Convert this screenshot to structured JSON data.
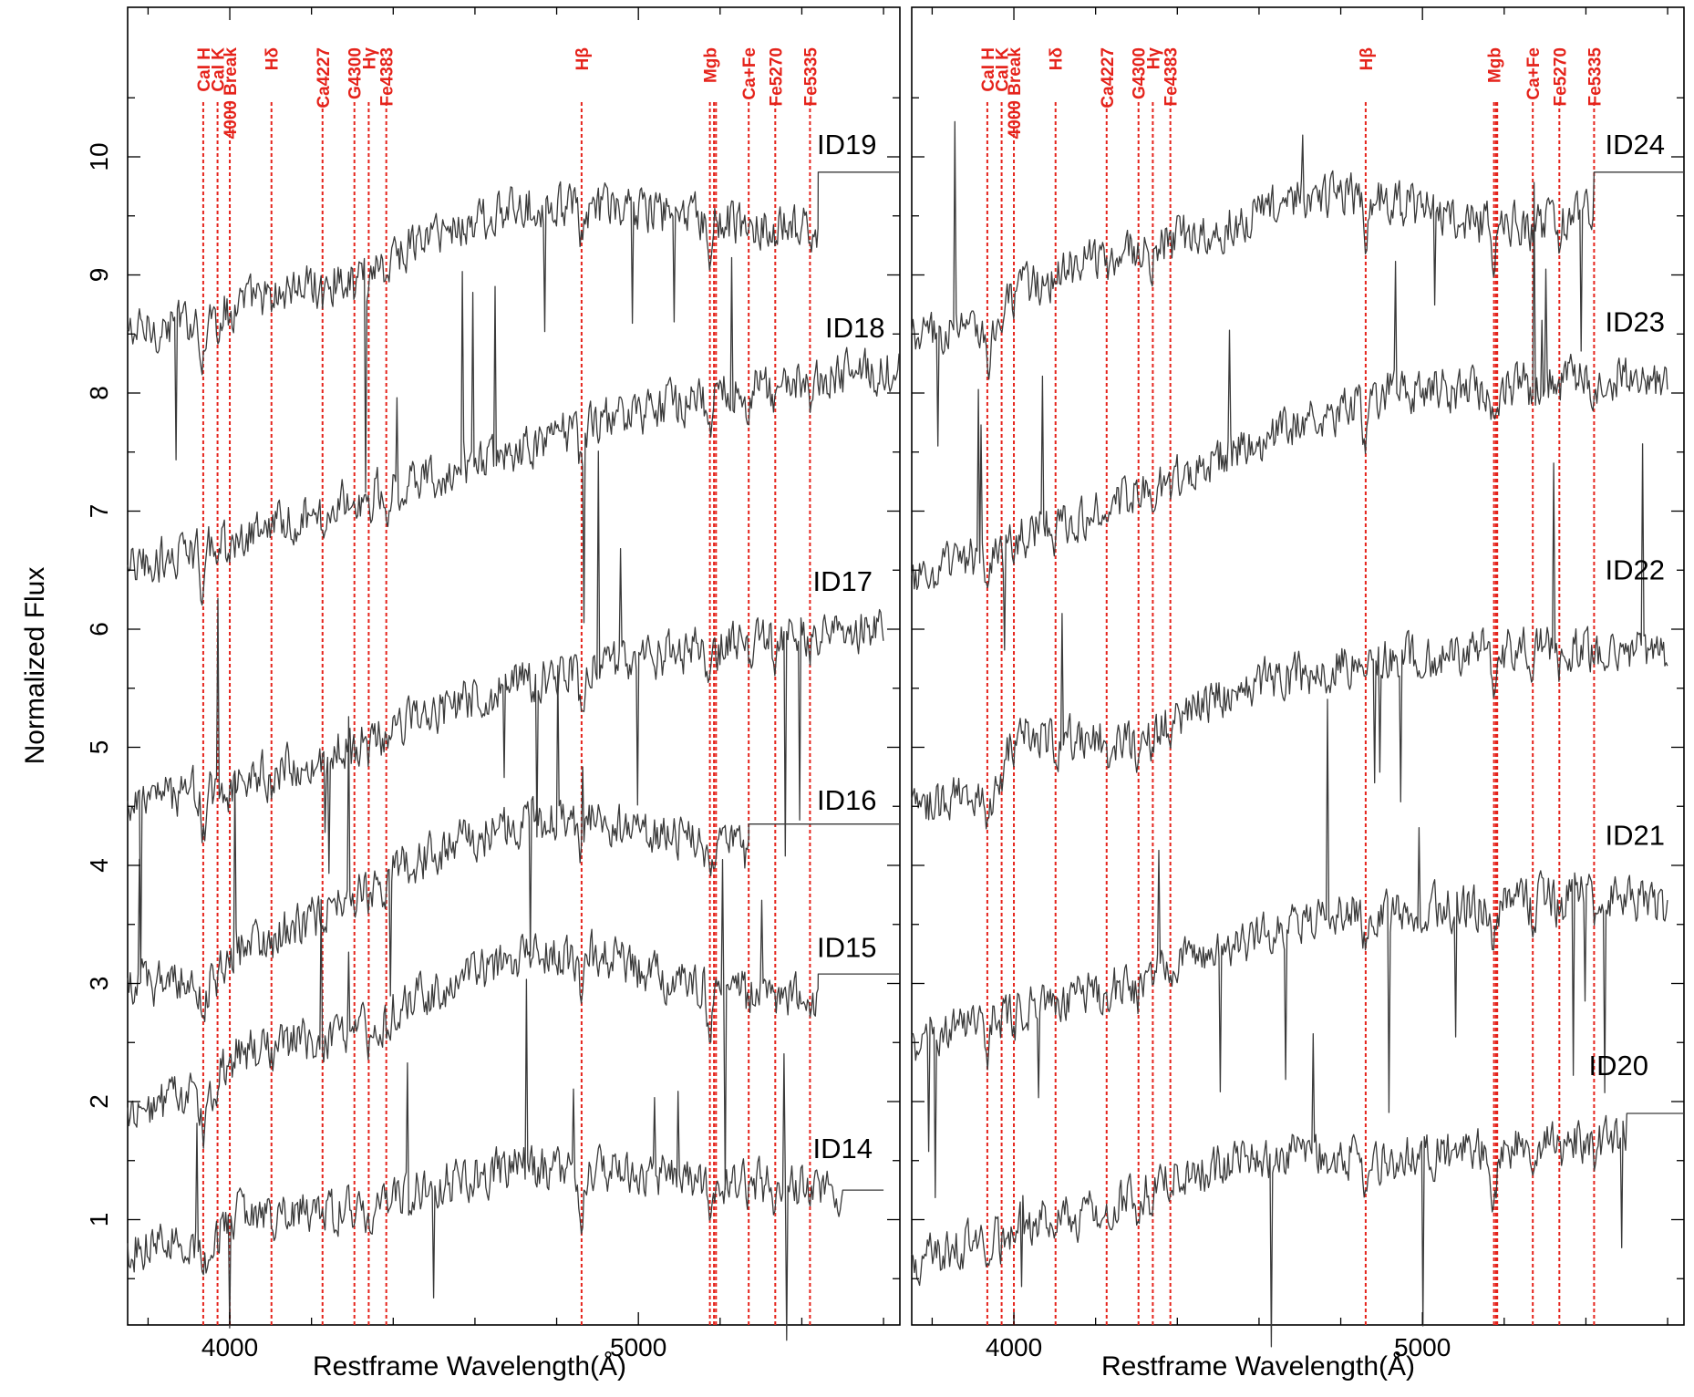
{
  "figure": {
    "ylabel": "Normalized Flux",
    "xlabel": "Restframe Wavelength(Å)"
  },
  "chart_data": [
    {
      "type": "line",
      "panel": "left",
      "xlabel": "Restframe Wavelength(Å)",
      "ylabel": "Normalized Flux",
      "xlim": [
        3750,
        5640
      ],
      "ylim": [
        0.0,
        10.0
      ],
      "x_ticks": [
        4000,
        5000
      ],
      "y_ticks": [
        1,
        2,
        3,
        4,
        5,
        6,
        7,
        8,
        9,
        10
      ],
      "features": [
        {
          "label": "CaI H",
          "wavelength": 3935
        },
        {
          "label": "CaI K",
          "wavelength": 3970
        },
        {
          "label": "4000 Break",
          "wavelength": 4000
        },
        {
          "label": "Hδ",
          "wavelength": 4102
        },
        {
          "label": "Ca4227",
          "wavelength": 4227
        },
        {
          "label": "G4300",
          "wavelength": 4305
        },
        {
          "label": "Hγ",
          "wavelength": 4340
        },
        {
          "label": "Fe4383",
          "wavelength": 4383
        },
        {
          "label": "Hβ",
          "wavelength": 4861
        },
        {
          "label": "Mgb",
          "wavelength": 5175
        },
        {
          "label": "Ca+Fe",
          "wavelength": 5270
        },
        {
          "label": "Fe5270",
          "wavelength": 5335
        },
        {
          "label": "Fe5335",
          "wavelength": 5420
        }
      ],
      "extra_feature_lines": [
        5185,
        5190
      ],
      "series": [
        {
          "name": "ID19",
          "profile": [
            [
              3750,
              8.5
            ],
            [
              3900,
              8.6
            ],
            [
              4000,
              8.75
            ],
            [
              4300,
              9.0
            ],
            [
              4500,
              9.35
            ],
            [
              4750,
              9.6
            ],
            [
              5000,
              9.55
            ],
            [
              5300,
              9.4
            ],
            [
              5430,
              9.4
            ]
          ],
          "cont_end": 5440,
          "flat_to": 5640,
          "flat_y": 9.87,
          "label_pos": [
            5510,
            10.1
          ]
        },
        {
          "name": "ID18",
          "profile": [
            [
              3750,
              6.5
            ],
            [
              4000,
              6.75
            ],
            [
              4300,
              7.1
            ],
            [
              4600,
              7.4
            ],
            [
              4900,
              7.75
            ],
            [
              5200,
              8.0
            ],
            [
              5500,
              8.15
            ],
            [
              5640,
              8.2
            ]
          ],
          "cont_end": 5640,
          "label_pos": [
            5530,
            8.55
          ]
        },
        {
          "name": "ID17",
          "profile": [
            [
              3750,
              4.5
            ],
            [
              4000,
              4.7
            ],
            [
              4200,
              4.9
            ],
            [
              4400,
              5.15
            ],
            [
              4700,
              5.55
            ],
            [
              5000,
              5.75
            ],
            [
              5300,
              5.9
            ],
            [
              5600,
              6.0
            ]
          ],
          "cont_end": 5600,
          "label_pos": [
            5500,
            6.4
          ]
        },
        {
          "name": "ID16",
          "profile": [
            [
              3750,
              3.0
            ],
            [
              3950,
              3.0
            ],
            [
              4000,
              3.25
            ],
            [
              4200,
              3.55
            ],
            [
              4400,
              3.95
            ],
            [
              4600,
              4.25
            ],
            [
              4800,
              4.4
            ],
            [
              5050,
              4.3
            ],
            [
              5270,
              4.15
            ]
          ],
          "cont_end": 5270,
          "flat_to": 5640,
          "flat_y": 4.35,
          "label_pos": [
            5510,
            4.55
          ]
        },
        {
          "name": "ID15",
          "profile": [
            [
              3750,
              1.9
            ],
            [
              3950,
              2.1
            ],
            [
              4000,
              2.4
            ],
            [
              4300,
              2.6
            ],
            [
              4500,
              2.95
            ],
            [
              4700,
              3.2
            ],
            [
              4900,
              3.25
            ],
            [
              5100,
              3.0
            ],
            [
              5300,
              2.95
            ],
            [
              5430,
              2.9
            ]
          ],
          "cont_end": 5440,
          "flat_to": 5640,
          "flat_y": 3.08,
          "label_pos": [
            5510,
            3.3
          ]
        },
        {
          "name": "ID14",
          "profile": [
            [
              3750,
              0.75
            ],
            [
              3950,
              0.85
            ],
            [
              4000,
              1.05
            ],
            [
              4300,
              1.1
            ],
            [
              4450,
              1.25
            ],
            [
              4700,
              1.45
            ],
            [
              5000,
              1.4
            ],
            [
              5300,
              1.3
            ],
            [
              5500,
              1.25
            ]
          ],
          "cont_end": 5500,
          "flat_to": 5600,
          "flat_y": 1.25,
          "label_pos": [
            5500,
            1.6
          ]
        }
      ]
    },
    {
      "type": "line",
      "panel": "right",
      "xlabel": "Restframe Wavelength(Å)",
      "xlim": [
        3750,
        5640
      ],
      "ylim": [
        0.0,
        10.0
      ],
      "x_ticks": [
        4000,
        5000
      ],
      "features": [
        {
          "label": "CaI H",
          "wavelength": 3935
        },
        {
          "label": "CaI K",
          "wavelength": 3970
        },
        {
          "label": "4000 Break",
          "wavelength": 4000
        },
        {
          "label": "Hδ",
          "wavelength": 4102
        },
        {
          "label": "Ca4227",
          "wavelength": 4227
        },
        {
          "label": "G4300",
          "wavelength": 4305
        },
        {
          "label": "Hγ",
          "wavelength": 4340
        },
        {
          "label": "Fe4383",
          "wavelength": 4383
        },
        {
          "label": "Hβ",
          "wavelength": 4861
        },
        {
          "label": "Mgb",
          "wavelength": 5175
        },
        {
          "label": "Ca+Fe",
          "wavelength": 5270
        },
        {
          "label": "Fe5270",
          "wavelength": 5335
        },
        {
          "label": "Fe5335",
          "wavelength": 5420
        }
      ],
      "extra_feature_lines": [
        5180,
        5183
      ],
      "series": [
        {
          "name": "ID24",
          "profile": [
            [
              3750,
              8.45
            ],
            [
              3950,
              8.6
            ],
            [
              4000,
              8.85
            ],
            [
              4200,
              9.15
            ],
            [
              4500,
              9.4
            ],
            [
              4750,
              9.7
            ],
            [
              4900,
              9.65
            ],
            [
              5100,
              9.45
            ],
            [
              5300,
              9.45
            ],
            [
              5400,
              9.5
            ]
          ],
          "cont_end": 5420,
          "flat_to": 5640,
          "flat_y": 9.87,
          "label_pos": [
            5520,
            10.1
          ]
        },
        {
          "name": "ID23",
          "profile": [
            [
              3750,
              6.4
            ],
            [
              4000,
              6.75
            ],
            [
              4300,
              7.15
            ],
            [
              4600,
              7.6
            ],
            [
              4900,
              8.0
            ],
            [
              5200,
              8.05
            ],
            [
              5400,
              8.15
            ],
            [
              5600,
              8.1
            ]
          ],
          "cont_end": 5600,
          "label_pos": [
            5520,
            8.6
          ]
        },
        {
          "name": "ID22",
          "profile": [
            [
              3750,
              4.5
            ],
            [
              3950,
              4.6
            ],
            [
              4000,
              5.1
            ],
            [
              4300,
              5.05
            ],
            [
              4400,
              5.25
            ],
            [
              4600,
              5.55
            ],
            [
              4900,
              5.75
            ],
            [
              5300,
              5.85
            ],
            [
              5600,
              5.8
            ]
          ],
          "cont_end": 5600,
          "label_pos": [
            5520,
            6.5
          ]
        },
        {
          "name": "ID21",
          "profile": [
            [
              3750,
              2.5
            ],
            [
              4000,
              2.8
            ],
            [
              4300,
              3.0
            ],
            [
              4500,
              3.3
            ],
            [
              4800,
              3.6
            ],
            [
              5100,
              3.65
            ],
            [
              5400,
              3.75
            ],
            [
              5600,
              3.65
            ]
          ],
          "cont_end": 5600,
          "label_pos": [
            5520,
            4.25
          ]
        },
        {
          "name": "ID20",
          "profile": [
            [
              3750,
              0.65
            ],
            [
              3950,
              0.85
            ],
            [
              4000,
              0.95
            ],
            [
              4200,
              1.05
            ],
            [
              4400,
              1.4
            ],
            [
              4700,
              1.55
            ],
            [
              4900,
              1.5
            ],
            [
              5200,
              1.6
            ],
            [
              5500,
              1.7
            ]
          ],
          "cont_end": 5500,
          "flat_to": 5640,
          "flat_y": 1.9,
          "label_pos": [
            5480,
            2.3
          ]
        }
      ]
    }
  ]
}
